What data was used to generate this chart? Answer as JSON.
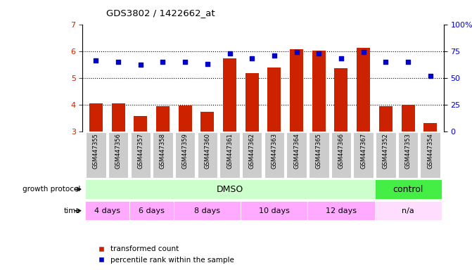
{
  "title": "GDS3802 / 1422662_at",
  "samples": [
    "GSM447355",
    "GSM447356",
    "GSM447357",
    "GSM447358",
    "GSM447359",
    "GSM447360",
    "GSM447361",
    "GSM447362",
    "GSM447363",
    "GSM447364",
    "GSM447365",
    "GSM447366",
    "GSM447367",
    "GSM447352",
    "GSM447353",
    "GSM447354"
  ],
  "transformed_count": [
    4.05,
    4.05,
    3.57,
    3.93,
    3.97,
    3.73,
    5.73,
    5.17,
    5.38,
    6.07,
    6.01,
    5.37,
    6.12,
    3.93,
    4.0,
    3.32
  ],
  "percentile_rank": [
    66,
    65,
    62,
    65,
    65,
    63,
    73,
    68,
    71,
    74,
    73,
    68,
    74,
    65,
    65,
    52
  ],
  "ylim_left": [
    3,
    7
  ],
  "ylim_right": [
    0,
    100
  ],
  "yticks_left": [
    3,
    4,
    5,
    6,
    7
  ],
  "yticks_right": [
    0,
    25,
    50,
    75,
    100
  ],
  "bar_color": "#cc2200",
  "dot_color": "#0000cc",
  "grid_color": "#000000",
  "dmso_color": "#ccffcc",
  "control_color": "#44ee44",
  "time_dmso_color": "#ffaaff",
  "time_na_color": "#ffddff",
  "sample_bg_color": "#cccccc",
  "axis_label_color_left": "#cc2200",
  "axis_label_color_right": "#0000cc",
  "legend_label_red": "transformed count",
  "legend_label_blue": "percentile rank within the sample",
  "growth_protocol_label": "growth protocol",
  "time_label": "time",
  "dmso_text": "DMSO",
  "control_text": "control",
  "time_groups": [
    {
      "text": "4 days",
      "start": 0,
      "end": 1
    },
    {
      "text": "6 days",
      "start": 2,
      "end": 3
    },
    {
      "text": "8 days",
      "start": 4,
      "end": 6
    },
    {
      "text": "10 days",
      "start": 7,
      "end": 9
    },
    {
      "text": "12 days",
      "start": 10,
      "end": 12
    },
    {
      "text": "n/a",
      "start": 13,
      "end": 15
    }
  ]
}
